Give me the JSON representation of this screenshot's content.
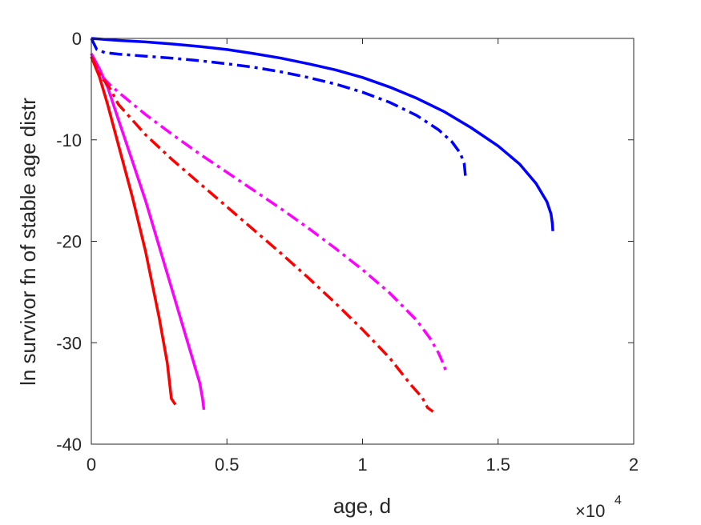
{
  "chart_data": {
    "type": "line",
    "title": "",
    "xlabel": "age, d",
    "ylabel": "ln survivor fn of stable age distr",
    "x_exponent_label": {
      "base": "×10",
      "exponent": "4"
    },
    "xlim": [
      0,
      20000
    ],
    "ylim": [
      -40,
      0
    ],
    "xticks": [
      0,
      5000,
      10000,
      15000,
      20000
    ],
    "xtick_labels": [
      "0",
      "0.5",
      "1",
      "1.5",
      "2"
    ],
    "yticks": [
      0,
      -10,
      -20,
      -30,
      -40
    ],
    "ytick_labels": [
      "0",
      "-10",
      "-20",
      "-30",
      "-40"
    ],
    "grid": false,
    "legend": null,
    "series": [
      {
        "color": "#0000ff",
        "style": "solid",
        "points": [
          [
            0,
            0
          ],
          [
            1000,
            -0.2
          ],
          [
            2000,
            -0.35
          ],
          [
            3000,
            -0.55
          ],
          [
            4000,
            -0.8
          ],
          [
            5000,
            -1.1
          ],
          [
            6000,
            -1.5
          ],
          [
            7000,
            -1.95
          ],
          [
            8000,
            -2.5
          ],
          [
            9000,
            -3.1
          ],
          [
            10000,
            -3.85
          ],
          [
            11000,
            -4.8
          ],
          [
            12000,
            -5.9
          ],
          [
            13000,
            -7.2
          ],
          [
            14000,
            -8.8
          ],
          [
            15000,
            -10.6
          ],
          [
            15800,
            -12.4
          ],
          [
            16400,
            -14.3
          ],
          [
            16800,
            -16.1
          ],
          [
            16950,
            -17.3
          ],
          [
            17000,
            -18.2
          ],
          [
            17020,
            -19
          ]
        ]
      },
      {
        "color": "#0000ff",
        "style": "dashdot",
        "points": [
          [
            0,
            0
          ],
          [
            200,
            -1.1
          ],
          [
            500,
            -1.4
          ],
          [
            1000,
            -1.55
          ],
          [
            2000,
            -1.75
          ],
          [
            3000,
            -1.95
          ],
          [
            4000,
            -2.2
          ],
          [
            5000,
            -2.5
          ],
          [
            6000,
            -2.85
          ],
          [
            7000,
            -3.3
          ],
          [
            8000,
            -3.85
          ],
          [
            9000,
            -4.5
          ],
          [
            10000,
            -5.3
          ],
          [
            11000,
            -6.3
          ],
          [
            12000,
            -7.6
          ],
          [
            12800,
            -9.0
          ],
          [
            13300,
            -10.2
          ],
          [
            13600,
            -11.3
          ],
          [
            13750,
            -12.3
          ],
          [
            13800,
            -13.7
          ]
        ]
      },
      {
        "color": "#ff00ff",
        "style": "solid",
        "points": [
          [
            0,
            -1.5
          ],
          [
            300,
            -3
          ],
          [
            600,
            -4.8
          ],
          [
            1000,
            -8
          ],
          [
            1500,
            -12
          ],
          [
            2000,
            -16
          ],
          [
            2500,
            -20.5
          ],
          [
            3000,
            -25
          ],
          [
            3500,
            -29.5
          ],
          [
            4000,
            -34
          ],
          [
            4100,
            -35.5
          ],
          [
            4150,
            -36.6
          ]
        ]
      },
      {
        "color": "#ff00ff",
        "style": "dashdot",
        "points": [
          [
            0,
            -1.5
          ],
          [
            300,
            -3.5
          ],
          [
            700,
            -4.6
          ],
          [
            1000,
            -5.3
          ],
          [
            2000,
            -7.5
          ],
          [
            3000,
            -9.5
          ],
          [
            4000,
            -11.4
          ],
          [
            5000,
            -13.2
          ],
          [
            6000,
            -15
          ],
          [
            7000,
            -16.8
          ],
          [
            8000,
            -18.7
          ],
          [
            9000,
            -20.7
          ],
          [
            10000,
            -22.8
          ],
          [
            11000,
            -25.1
          ],
          [
            12000,
            -27.8
          ],
          [
            12500,
            -29.6
          ],
          [
            12800,
            -31.0
          ],
          [
            13000,
            -32.2
          ],
          [
            13100,
            -33.0
          ]
        ]
      },
      {
        "color": "#ff0000",
        "style": "solid",
        "points": [
          [
            0,
            -1.8
          ],
          [
            300,
            -3.8
          ],
          [
            600,
            -6.5
          ],
          [
            1000,
            -10.5
          ],
          [
            1500,
            -15.5
          ],
          [
            2000,
            -21
          ],
          [
            2500,
            -27.5
          ],
          [
            2800,
            -32
          ],
          [
            2950,
            -35.5
          ],
          [
            3100,
            -36.1
          ]
        ]
      },
      {
        "color": "#ff0000",
        "style": "dashdot",
        "points": [
          [
            0,
            -1.8
          ],
          [
            300,
            -3.5
          ],
          [
            700,
            -5
          ],
          [
            1000,
            -6.5
          ],
          [
            2000,
            -9.5
          ],
          [
            3000,
            -12
          ],
          [
            4000,
            -14.3
          ],
          [
            5000,
            -16.6
          ],
          [
            6000,
            -18.9
          ],
          [
            7000,
            -21.2
          ],
          [
            8000,
            -23.6
          ],
          [
            9000,
            -26.1
          ],
          [
            10000,
            -28.7
          ],
          [
            11000,
            -31.5
          ],
          [
            11800,
            -34.2
          ],
          [
            12200,
            -35.4
          ],
          [
            12400,
            -36.4
          ],
          [
            12600,
            -36.8
          ]
        ]
      }
    ]
  }
}
